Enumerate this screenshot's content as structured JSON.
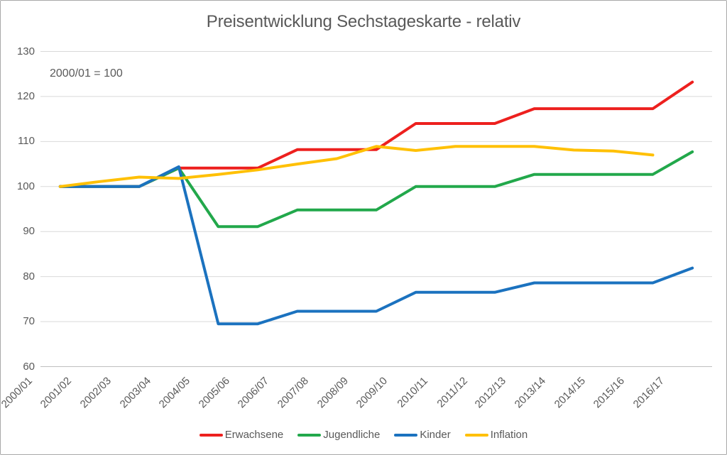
{
  "chart_data": {
    "type": "line",
    "title": "Preisentwicklung Sechstageskarte - relativ",
    "annotation": "2000/01 = 100",
    "categories": [
      "2000/01",
      "2001/02",
      "2002/03",
      "2003/04",
      "2004/05",
      "2005/06",
      "2006/07",
      "2007/08",
      "2008/09",
      "2009/10",
      "2010/11",
      "2011/12",
      "2012/13",
      "2013/14",
      "2014/15",
      "2015/16",
      "2016/17"
    ],
    "series": [
      {
        "name": "Erwachsene",
        "color": "#ED201E",
        "values": [
          100,
          100,
          100,
          104.1,
          104.1,
          104.1,
          108.2,
          108.2,
          108.2,
          114.0,
          114.0,
          114.0,
          117.3,
          117.3,
          117.3,
          117.3,
          123.2
        ]
      },
      {
        "name": "Jugendliche",
        "color": "#22A84B",
        "values": [
          100,
          100,
          100,
          104.1,
          91.1,
          91.1,
          94.8,
          94.8,
          94.8,
          100,
          100,
          100,
          102.7,
          102.7,
          102.7,
          102.7,
          107.7
        ]
      },
      {
        "name": "Kinder",
        "color": "#1B72BF",
        "values": [
          100,
          100,
          100,
          104.4,
          69.5,
          69.5,
          72.3,
          72.3,
          72.3,
          76.5,
          76.5,
          76.5,
          78.6,
          78.6,
          78.6,
          78.6,
          81.9
        ]
      },
      {
        "name": "Inflation",
        "color": "#FFC003",
        "values": [
          100,
          101.1,
          102.1,
          101.8,
          102.7,
          103.7,
          105.0,
          106.2,
          108.9,
          108.0,
          108.9,
          108.9,
          108.9,
          108.1,
          107.9,
          107.0
        ]
      }
    ],
    "ylim": [
      60,
      130
    ],
    "yticks": [
      130,
      120,
      110,
      100,
      90,
      80,
      70,
      60
    ],
    "grid": true,
    "legend_position": "bottom",
    "xlabel": "",
    "ylabel": ""
  },
  "colors": {
    "text": "#595959",
    "gridline": "#D9D9D9",
    "axis_line": "#BFBFBF",
    "background": "#FFFFFF",
    "frame_border": "#A9A9A9"
  }
}
